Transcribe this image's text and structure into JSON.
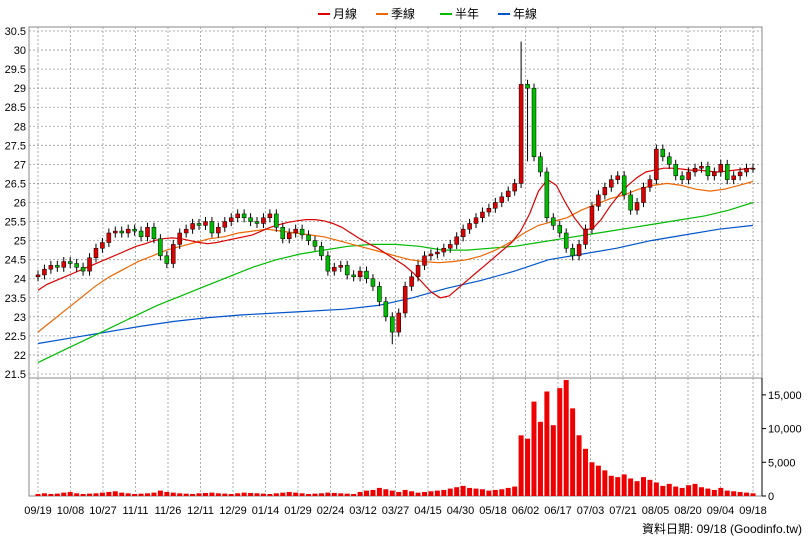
{
  "chart_data": {
    "type": "candlestick",
    "legend": [
      {
        "name": "月線",
        "color": "#dd0000"
      },
      {
        "name": "季線",
        "color": "#ee6600"
      },
      {
        "name": "半年",
        "color": "#00bb00"
      },
      {
        "name": "年線",
        "color": "#0055cc"
      }
    ],
    "price_axis": {
      "ylim": [
        21.5,
        30.5
      ],
      "ticks": [
        "30.5",
        "30",
        "29.5",
        "29",
        "28.5",
        "28",
        "27.5",
        "27",
        "26.5",
        "26",
        "25.5",
        "25",
        "24.5",
        "24",
        "23.5",
        "23",
        "22.5",
        "22",
        "21.5"
      ]
    },
    "volume_axis": {
      "ylim": [
        0,
        17500
      ],
      "ticks": [
        "15,000",
        "10,000",
        "5,000",
        "0"
      ]
    },
    "x_ticks": [
      "09/19",
      "10/08",
      "10/27",
      "11/11",
      "11/26",
      "12/11",
      "12/29",
      "01/14",
      "01/29",
      "02/24",
      "03/12",
      "03/27",
      "04/15",
      "04/30",
      "05/18",
      "06/02",
      "06/17",
      "07/03",
      "07/21",
      "08/05",
      "08/20",
      "09/04",
      "09/18"
    ],
    "source_label": "資料日期: 09/18  (Goodinfo.tw)",
    "close_series": [
      24.1,
      24.25,
      24.35,
      24.3,
      24.45,
      24.4,
      24.3,
      24.2,
      24.55,
      24.8,
      24.95,
      25.2,
      25.25,
      25.2,
      25.3,
      25.25,
      25.1,
      25.35,
      25.05,
      24.6,
      24.4,
      24.9,
      25.2,
      25.3,
      25.45,
      25.4,
      25.5,
      25.2,
      25.35,
      25.5,
      25.6,
      25.7,
      25.6,
      25.5,
      25.45,
      25.6,
      25.7,
      25.35,
      25.05,
      25.2,
      25.3,
      25.15,
      25.0,
      24.85,
      24.6,
      24.2,
      24.3,
      24.35,
      24.1,
      24.05,
      24.2,
      24.0,
      23.8,
      23.4,
      23.0,
      22.6,
      23.1,
      23.8,
      24.05,
      24.35,
      24.6,
      24.65,
      24.7,
      24.8,
      24.9,
      25.1,
      25.3,
      25.45,
      25.6,
      25.75,
      25.85,
      26.0,
      26.15,
      26.3,
      26.5,
      29.1,
      29.0,
      27.2,
      26.8,
      25.6,
      25.4,
      25.2,
      24.8,
      24.6,
      24.9,
      25.3,
      25.9,
      26.2,
      26.4,
      26.6,
      26.7,
      26.2,
      25.8,
      26.0,
      26.4,
      26.6,
      27.4,
      27.2,
      27.0,
      26.7,
      26.6,
      26.8,
      26.9,
      26.95,
      26.7,
      26.8,
      27.0,
      26.6,
      26.7,
      26.8,
      26.9,
      26.9
    ],
    "ma_month": [
      23.7,
      23.85,
      23.95,
      24.05,
      24.15,
      24.25,
      24.35,
      24.45,
      24.55,
      24.65,
      24.75,
      24.85,
      24.92,
      25.0,
      25.05,
      25.07,
      25.05,
      25.0,
      24.95,
      24.92,
      24.95,
      25.0,
      25.05,
      25.1,
      25.15,
      25.25,
      25.35,
      25.42,
      25.48,
      25.52,
      25.55,
      25.55,
      25.52,
      25.45,
      25.35,
      25.2,
      25.05,
      24.92,
      24.8,
      24.65,
      24.5,
      24.35,
      24.15,
      23.9,
      23.65,
      23.5,
      23.55,
      23.75,
      23.95,
      24.15,
      24.35,
      24.55,
      24.75,
      24.95,
      25.25,
      25.7,
      26.3,
      26.6,
      26.45,
      26.0,
      25.6,
      25.3,
      25.3,
      25.55,
      25.9,
      26.2,
      26.45,
      26.65,
      26.8,
      26.85,
      26.9,
      26.9,
      26.88,
      26.85,
      26.85,
      26.82,
      26.8,
      26.82,
      26.85,
      26.88,
      26.9
    ],
    "ma_quarter": [
      22.6,
      22.9,
      23.2,
      23.5,
      23.8,
      24.05,
      24.25,
      24.45,
      24.6,
      24.75,
      24.85,
      24.95,
      25.05,
      25.1,
      25.2,
      25.25,
      25.3,
      25.25,
      25.2,
      25.15,
      25.1,
      25.0,
      24.9,
      24.8,
      24.7,
      24.6,
      24.5,
      24.45,
      24.42,
      24.45,
      24.5,
      24.6,
      24.75,
      24.95,
      25.2,
      25.4,
      25.5,
      25.6,
      25.8,
      25.95,
      26.1,
      26.2,
      26.35,
      26.45,
      26.5,
      26.45,
      26.35,
      26.3,
      26.35,
      26.45,
      26.55
    ],
    "ma_half": [
      21.8,
      22.1,
      22.4,
      22.7,
      23.0,
      23.3,
      23.55,
      23.8,
      24.05,
      24.3,
      24.5,
      24.65,
      24.75,
      24.85,
      24.9,
      24.9,
      24.85,
      24.75,
      24.75,
      24.8,
      24.85,
      24.95,
      25.05,
      25.15,
      25.25,
      25.35,
      25.45,
      25.55,
      25.65,
      25.8,
      26.0
    ],
    "ma_year": [
      22.3,
      22.45,
      22.6,
      22.75,
      22.88,
      22.98,
      23.05,
      23.1,
      23.15,
      23.2,
      23.3,
      23.5,
      23.75,
      23.95,
      24.2,
      24.5,
      24.65,
      24.8,
      25.0,
      25.15,
      25.3,
      25.4
    ],
    "volume_note": "most days under 1,000; peak near 17,000 around 06/10",
    "volume_series": [
      300,
      400,
      300,
      350,
      500,
      600,
      400,
      300,
      350,
      400,
      500,
      600,
      700,
      500,
      400,
      300,
      350,
      400,
      500,
      800,
      600,
      500,
      400,
      350,
      300,
      400,
      450,
      500,
      400,
      350,
      300,
      400,
      500,
      450,
      400,
      350,
      300,
      400,
      500,
      600,
      500,
      400,
      300,
      350,
      400,
      500,
      450,
      400,
      350,
      300,
      600,
      800,
      900,
      1200,
      1000,
      800,
      600,
      900,
      700,
      500,
      600,
      700,
      800,
      900,
      1100,
      1300,
      1500,
      1200,
      1100,
      1000,
      800,
      900,
      1000,
      1200,
      1400,
      9000,
      8500,
      14000,
      11000,
      15500,
      10500,
      16000,
      17200,
      13000,
      9000,
      7000,
      5000,
      4500,
      3800,
      3000,
      2800,
      3200,
      2600,
      2200,
      2800,
      2400,
      2000,
      1500,
      1800,
      1400,
      1200,
      1600,
      1800,
      1300,
      1100,
      900,
      1200,
      800,
      700,
      600,
      500,
      400
    ],
    "price_colors": {
      "up": "#dd0000",
      "down": "#00bb00",
      "wick": "#000000"
    },
    "volume_color": "#ee0000",
    "grid": true
  }
}
